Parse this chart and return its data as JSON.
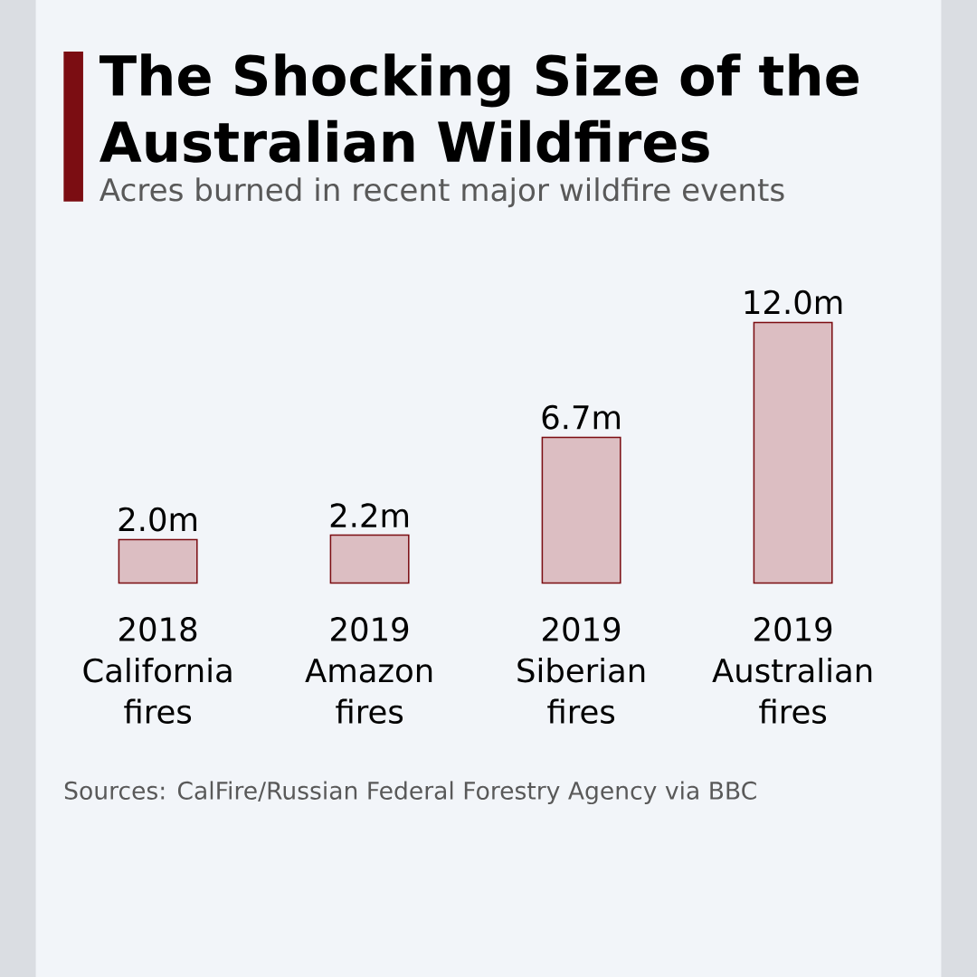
{
  "chart_data": {
    "type": "bar",
    "title": "The Shocking Size of the Australian Wildfires",
    "subtitle": "Acres burned in recent major wildfire events",
    "categories": [
      "2018 California fires",
      "2019 Amazon fires",
      "2019 Siberian fires",
      "2019 Australian fires"
    ],
    "values": [
      2.0,
      2.2,
      6.7,
      12.0
    ],
    "value_labels": [
      "2.0m",
      "2.2m",
      "6.7m",
      "12.0m"
    ],
    "color": "#dcbec2",
    "annotations": [
      "Sources: CalFire/Russian Federal Forestry Agency via BBC"
    ]
  }
}
